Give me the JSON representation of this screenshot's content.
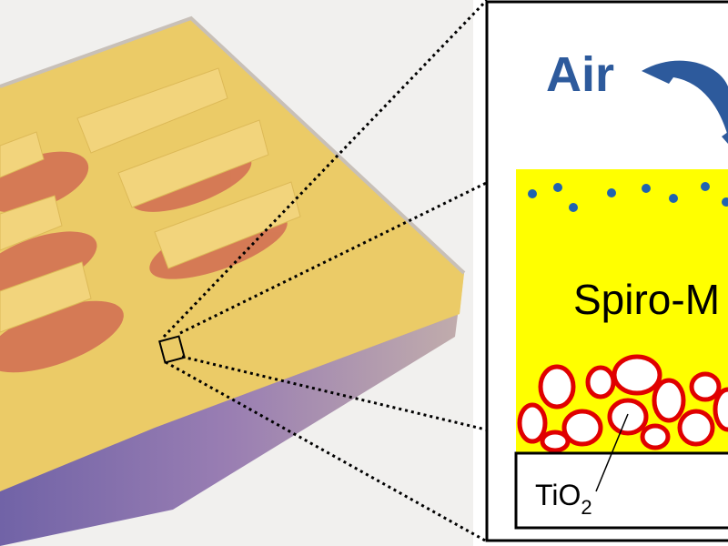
{
  "diagram": {
    "labels": {
      "air": "Air",
      "layer": "Spiro-M",
      "substrate": {
        "base": "TiO",
        "subscript": "2"
      }
    }
  }
}
